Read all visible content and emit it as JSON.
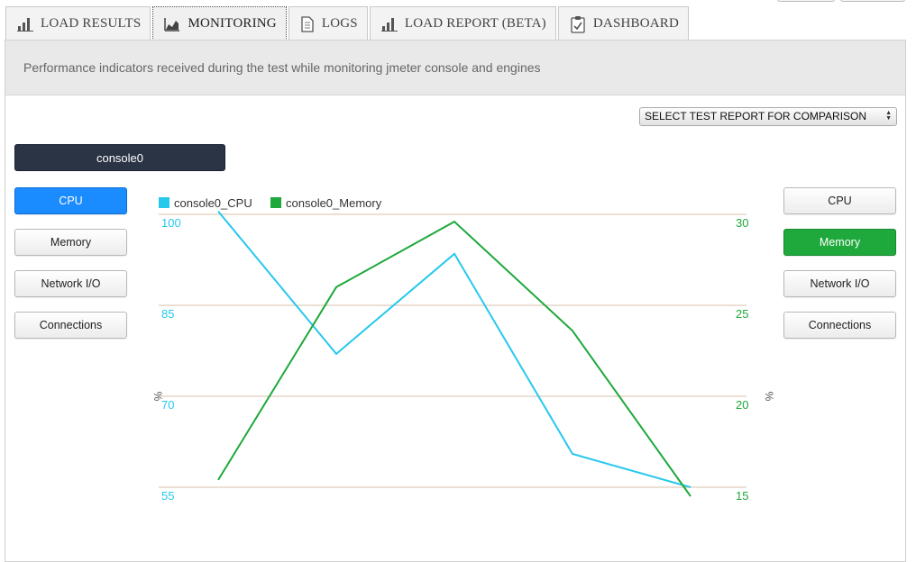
{
  "tabs": [
    {
      "label": "LOAD RESULTS",
      "icon": "bar-chart-icon"
    },
    {
      "label": "MONITORING",
      "icon": "area-chart-icon",
      "active": true
    },
    {
      "label": "LOGS",
      "icon": "document-icon"
    },
    {
      "label": "LOAD REPORT (BETA)",
      "icon": "bar-chart-icon"
    },
    {
      "label": "DASHBOARD",
      "icon": "clipboard-check-icon"
    }
  ],
  "banner": {
    "text": "Performance indicators received during the test while monitoring jmeter console and engines"
  },
  "compare": {
    "label": "SELECT TEST REPORT FOR COMPARISON"
  },
  "engine": {
    "label": "console0"
  },
  "left_metrics": {
    "cpu": "CPU",
    "memory": "Memory",
    "network": "Network I/O",
    "connections": "Connections",
    "selected": "CPU",
    "selected_color": "#1a8cff"
  },
  "right_metrics": {
    "cpu": "CPU",
    "memory": "Memory",
    "network": "Network I/O",
    "connections": "Connections",
    "selected": "Memory",
    "selected_color": "#1fa83c"
  },
  "chart_data": {
    "type": "line",
    "legend_position": "top-left",
    "grid": true,
    "x": [
      1,
      2,
      3,
      4,
      5
    ],
    "axes": {
      "left": {
        "label": "%",
        "range": [
          55,
          100
        ],
        "ticks": [
          "100",
          "85",
          "70",
          "55"
        ],
        "color": "#27c8ee"
      },
      "right": {
        "label": "%",
        "range": [
          15,
          30
        ],
        "ticks": [
          "30",
          "25",
          "20",
          "15"
        ],
        "color": "#1fa83c"
      }
    },
    "series": [
      {
        "name": "console0_CPU",
        "axis": "left",
        "color": "#27c8ee",
        "values": [
          100.5,
          77,
          93.5,
          60.5,
          55
        ]
      },
      {
        "name": "console0_Memory",
        "axis": "right",
        "color": "#1fa83c",
        "values": [
          15.4,
          26,
          29.6,
          23.6,
          14.5
        ]
      }
    ]
  }
}
